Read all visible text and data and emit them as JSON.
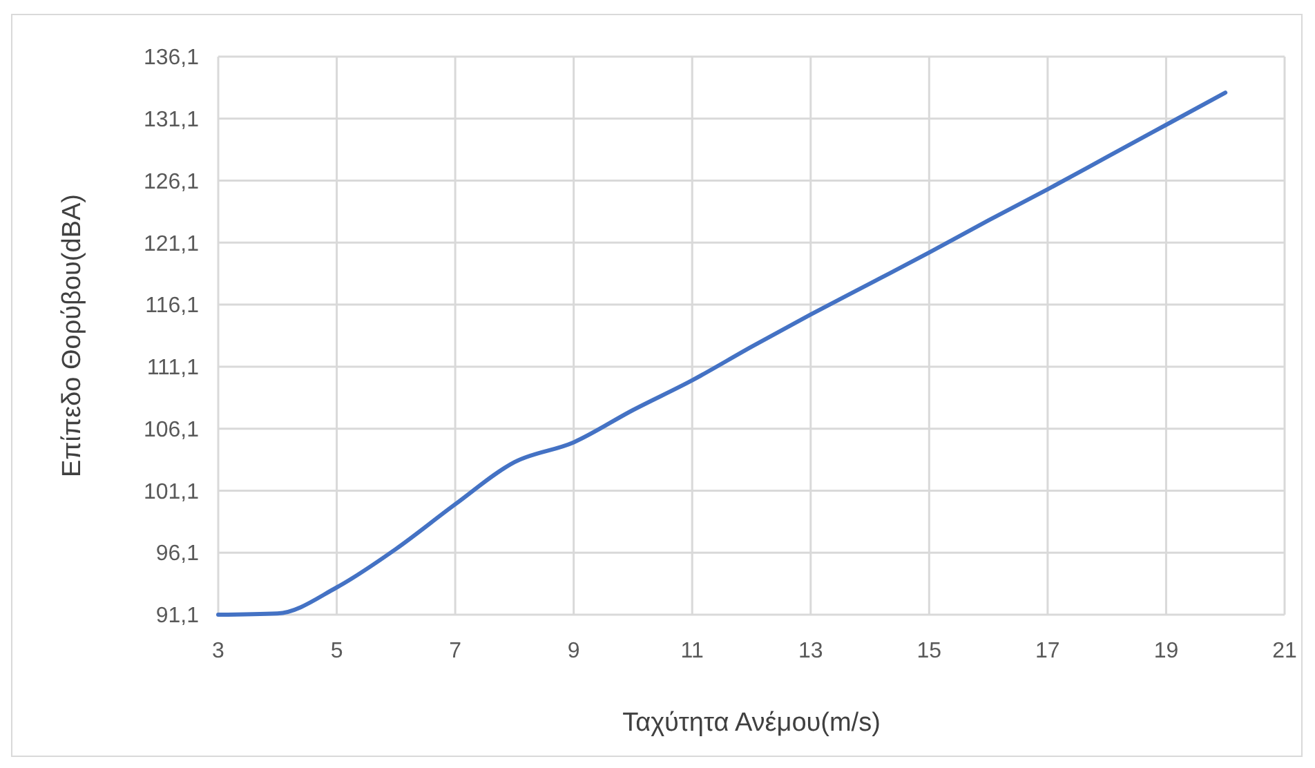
{
  "chart_data": {
    "type": "line",
    "xlabel": "Ταχύτητα Ανέμου(m/s)",
    "ylabel": "Επίπεδο Θορύβου(dBA)",
    "x": [
      3,
      4,
      5,
      6,
      7,
      8,
      9,
      10,
      11,
      12,
      13,
      14,
      15,
      16,
      17,
      18,
      19,
      20
    ],
    "series": [
      {
        "color": "#4472c4",
        "values": [
          91.1,
          91.2,
          93.3,
          96.4,
          100.0,
          103.4,
          105.0,
          107.6,
          110.0,
          112.7,
          115.3,
          117.8,
          120.3,
          122.9,
          125.4,
          128.0,
          130.6,
          133.2
        ]
      }
    ],
    "xlim": [
      3,
      21
    ],
    "xticks": [
      3,
      5,
      7,
      9,
      11,
      13,
      15,
      17,
      19,
      21
    ],
    "ylim": [
      91.1,
      136.1
    ],
    "yticks": [
      {
        "value": 91.1,
        "label": "91,1"
      },
      {
        "value": 96.1,
        "label": "96,1"
      },
      {
        "value": 101.1,
        "label": "101,1"
      },
      {
        "value": 106.1,
        "label": "106,1"
      },
      {
        "value": 111.1,
        "label": "111,1"
      },
      {
        "value": 116.1,
        "label": "116,1"
      },
      {
        "value": 121.1,
        "label": "121,1"
      },
      {
        "value": 126.1,
        "label": "126,1"
      },
      {
        "value": 131.1,
        "label": "131,1"
      },
      {
        "value": 136.1,
        "label": "136,1"
      }
    ],
    "grid": true
  }
}
